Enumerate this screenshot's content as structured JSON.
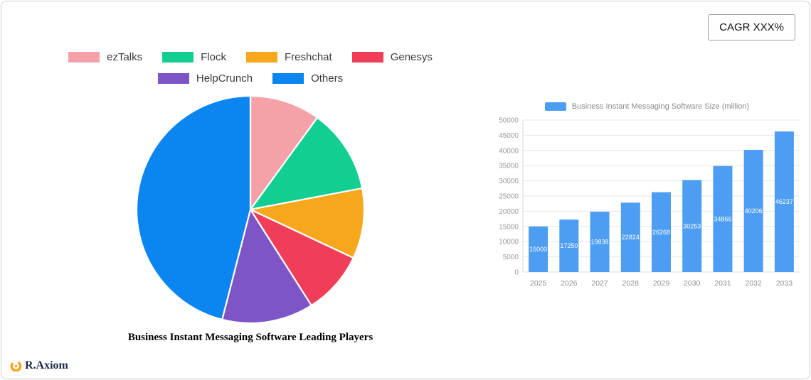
{
  "cagr": {
    "label": "CAGR XXX%"
  },
  "logo": {
    "text": "R.Axiom",
    "icon_color": "#F5A623"
  },
  "chart_data": [
    {
      "type": "pie",
      "title": "Business Instant Messaging Software Leading Players",
      "labels": [
        "ezTalks",
        "Flock",
        "Freshchat",
        "Genesys",
        "HelpCrunch",
        "Others"
      ],
      "values": [
        10,
        12,
        10,
        9,
        13,
        46
      ],
      "unit": "percent_estimated",
      "colors": [
        "#F4A2A8",
        "#13CE93",
        "#F7A71B",
        "#F03E58",
        "#7D55C7",
        "#0B85F0"
      ],
      "legend_position": "top",
      "start_angle_deg": 0,
      "direction": "clockwise"
    },
    {
      "type": "bar",
      "legend_label": "Business Instant Messaging Software Size (million)",
      "categories": [
        "2025",
        "2026",
        "2027",
        "2028",
        "2029",
        "2030",
        "2031",
        "2032",
        "2033"
      ],
      "values": [
        15000,
        17250,
        19838,
        22824,
        26268,
        30253,
        34866,
        40206,
        46237
      ],
      "ylim": [
        0,
        50000
      ],
      "ytick_step": 5000,
      "bar_color": "#4D9DF3",
      "grid": true,
      "value_labels": "inside-white",
      "axis_text_color": "#999999",
      "grid_color": "#e6e6e6"
    }
  ]
}
